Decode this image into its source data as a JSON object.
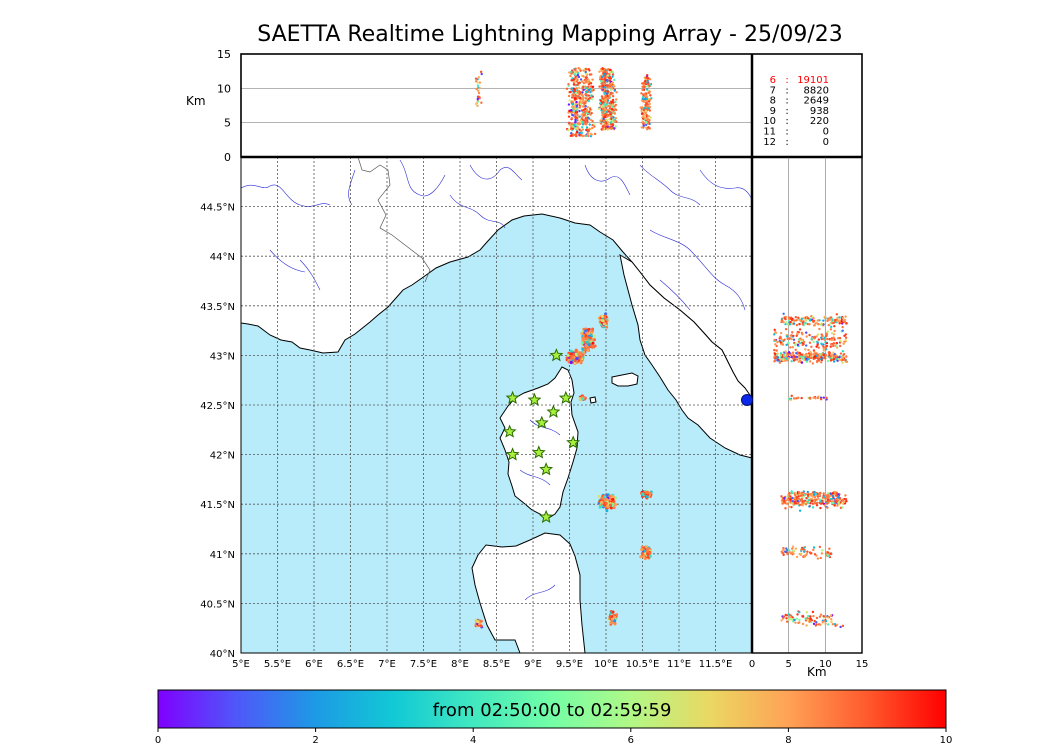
{
  "title": "SAETTA Realtime Lightning Mapping Array - 25/09/23",
  "alt_axis": {
    "unit_label": "Km",
    "ticks": [
      "0",
      "5",
      "10",
      "15"
    ]
  },
  "lon_axis": {
    "ticks": [
      "5°E",
      "5.5°E",
      "6°E",
      "6.5°E",
      "7°E",
      "7.5°E",
      "8°E",
      "8.5°E",
      "9°E",
      "9.5°E",
      "10°E",
      "10.5°E",
      "11°E",
      "11.5°E"
    ]
  },
  "lat_axis": {
    "ticks": [
      "40°N",
      "40.5°N",
      "41°N",
      "41.5°N",
      "42°N",
      "42.5°N",
      "43°N",
      "43.5°N",
      "44°N",
      "44.5°N"
    ]
  },
  "side_axis": {
    "unit_label": "Km",
    "ticks": [
      "0",
      "5",
      "10",
      "15"
    ]
  },
  "counts": [
    {
      "km": "6",
      "sep": ":",
      "value": "19101",
      "highlight": true
    },
    {
      "km": "7",
      "sep": ":",
      "value": "8820",
      "highlight": false
    },
    {
      "km": "8",
      "sep": ":",
      "value": "2649",
      "highlight": false
    },
    {
      "km": "9",
      "sep": ":",
      "value": "938",
      "highlight": false
    },
    {
      "km": "10",
      "sep": ":",
      "value": "220",
      "highlight": false
    },
    {
      "km": "11",
      "sep": ":",
      "value": "0",
      "highlight": false
    },
    {
      "km": "12",
      "sep": ":",
      "value": "0",
      "highlight": false
    }
  ],
  "colorbar": {
    "label": "from 02:50:00 to 02:59:59",
    "ticks": [
      "0",
      "2",
      "4",
      "6",
      "8",
      "10"
    ],
    "colors": [
      "#7f00ff",
      "#4f58f9",
      "#1d9ae5",
      "#12c9d5",
      "#41e8c0",
      "#74fea6",
      "#b1f887",
      "#ead862",
      "#ffa256",
      "#ff5a2d",
      "#ff0000"
    ]
  },
  "map_colors": {
    "sea": "#b8ecfa",
    "land": "#ffffff",
    "coast": "#000000",
    "rivers": "#2b2bd6",
    "grid": "#555555",
    "station_fill": "#a8f03c",
    "station_edge": "#2a6a00"
  },
  "chart_data": {
    "type": "scatter",
    "lon_range": [
      5,
      12
    ],
    "lat_range": [
      40,
      45
    ],
    "alt_range_km": [
      0,
      15
    ],
    "time_range_min": [
      0,
      10
    ],
    "stations": [
      [
        8.72,
        42.57
      ],
      [
        9.02,
        42.55
      ],
      [
        9.28,
        42.43
      ],
      [
        9.45,
        42.57
      ],
      [
        9.32,
        43.0
      ],
      [
        9.12,
        42.32
      ],
      [
        8.68,
        42.23
      ],
      [
        8.72,
        42.0
      ],
      [
        9.08,
        42.02
      ],
      [
        9.55,
        42.12
      ],
      [
        9.18,
        41.85
      ],
      [
        9.18,
        41.37
      ]
    ],
    "storm_clusters": [
      {
        "lon": 9.58,
        "lat": 42.98,
        "lon_spread": 0.1,
        "lat_spread": 0.05,
        "alt_min": 3,
        "alt_max": 13,
        "n": 260
      },
      {
        "lon": 9.75,
        "lat": 43.15,
        "lon_spread": 0.08,
        "lat_spread": 0.1,
        "alt_min": 3,
        "alt_max": 13,
        "n": 160
      },
      {
        "lon": 9.97,
        "lat": 43.35,
        "lon_spread": 0.05,
        "lat_spread": 0.05,
        "alt_min": 4,
        "alt_max": 13,
        "n": 140
      },
      {
        "lon": 10.02,
        "lat": 41.53,
        "lon_spread": 0.09,
        "lat_spread": 0.06,
        "alt_min": 4,
        "alt_max": 13,
        "n": 220
      },
      {
        "lon": 10.55,
        "lat": 41.6,
        "lon_spread": 0.06,
        "lat_spread": 0.03,
        "alt_min": 5,
        "alt_max": 12,
        "n": 90
      },
      {
        "lon": 10.55,
        "lat": 41.02,
        "lon_spread": 0.06,
        "lat_spread": 0.06,
        "alt_min": 4,
        "alt_max": 11,
        "n": 70
      },
      {
        "lon": 10.1,
        "lat": 40.35,
        "lon_spread": 0.05,
        "lat_spread": 0.05,
        "alt_min": 4,
        "alt_max": 11,
        "n": 60
      },
      {
        "lon": 9.68,
        "lat": 42.57,
        "lon_spread": 0.04,
        "lat_spread": 0.02,
        "alt_min": 5,
        "alt_max": 11,
        "n": 30
      },
      {
        "lon": 8.25,
        "lat": 40.3,
        "lon_spread": 0.04,
        "lat_spread": 0.04,
        "alt_min": 7,
        "alt_max": 13,
        "n": 25
      }
    ]
  }
}
